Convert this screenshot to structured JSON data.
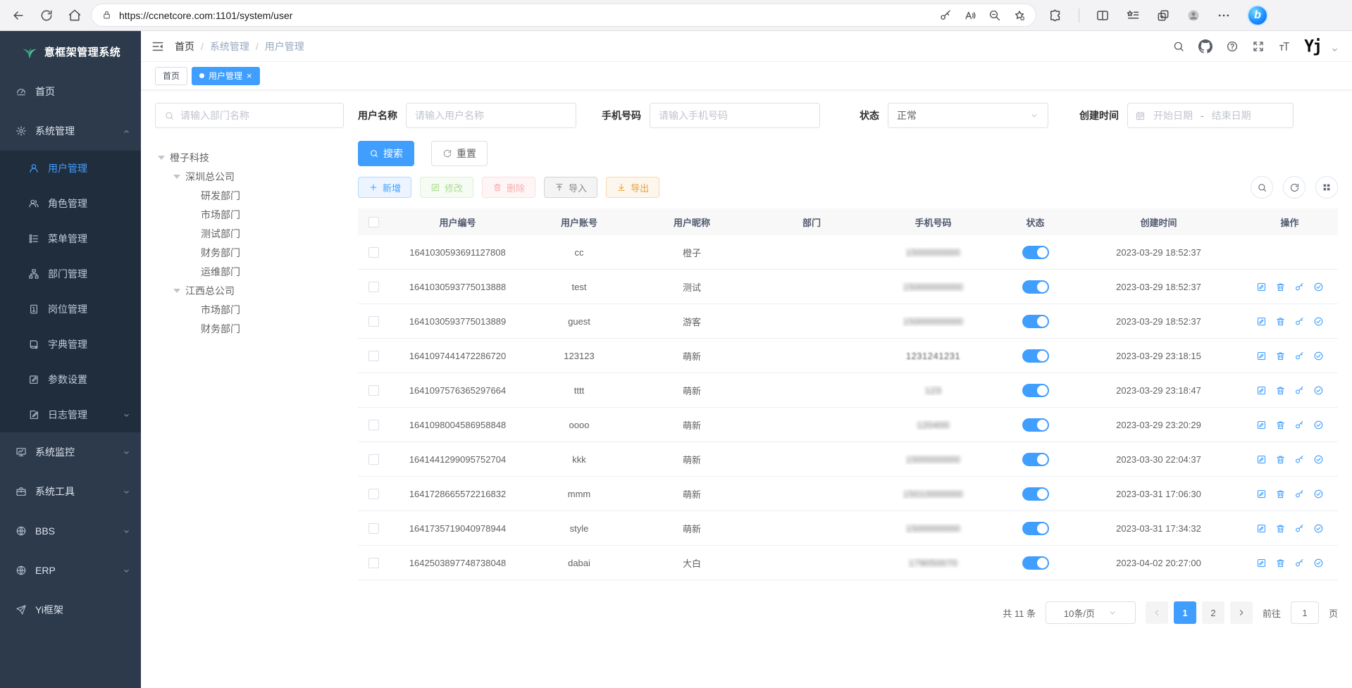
{
  "colors": {
    "accent": "#409eff",
    "sidebar_bg": "#2d3a4b",
    "sidebar_submenu_bg": "#202d3d",
    "success": "#67c23a",
    "danger": "#f56c6c",
    "warning": "#e6a23c",
    "info": "#909399",
    "toggle_on": "#409eff"
  },
  "browser": {
    "url": "https://ccnetcore.com:1101/system/user",
    "left_icons": [
      "back",
      "refresh",
      "home"
    ],
    "pill_icons_right": [
      "key",
      "read-aloud",
      "zoom-out",
      "favorite-add"
    ],
    "right_icons": [
      "extensions",
      "split-screen",
      "collections",
      "tab-actions",
      "profile",
      "more",
      "copilot"
    ]
  },
  "sidebar": {
    "title": "意框架管理系统",
    "items": [
      {
        "key": "home",
        "icon": "dashboard",
        "label": "首页"
      },
      {
        "key": "system",
        "icon": "gear",
        "label": "系统管理",
        "arrow": "up",
        "children": [
          {
            "key": "user",
            "icon": "user",
            "label": "用户管理",
            "active": true
          },
          {
            "key": "role",
            "icon": "users",
            "label": "角色管理"
          },
          {
            "key": "menu",
            "icon": "menu-tree",
            "label": "菜单管理"
          },
          {
            "key": "dept",
            "icon": "org",
            "label": "部门管理"
          },
          {
            "key": "post",
            "icon": "badge",
            "label": "岗位管理"
          },
          {
            "key": "dict",
            "icon": "dict-book",
            "label": "字典管理"
          },
          {
            "key": "config",
            "icon": "edit-square",
            "label": "参数设置"
          },
          {
            "key": "log",
            "icon": "log-doc",
            "label": "日志管理",
            "arrow": "down"
          }
        ]
      },
      {
        "key": "monitor",
        "icon": "monitor",
        "label": "系统监控",
        "arrow": "down"
      },
      {
        "key": "tool",
        "icon": "toolbox",
        "label": "系统工具",
        "arrow": "down"
      },
      {
        "key": "bbs",
        "icon": "globe",
        "label": "BBS",
        "arrow": "down"
      },
      {
        "key": "erp",
        "icon": "globe",
        "label": "ERP",
        "arrow": "down"
      },
      {
        "key": "yi",
        "icon": "paper-plane",
        "label": "Yi框架"
      }
    ]
  },
  "navbar": {
    "breadcrumb": [
      "首页",
      "系统管理",
      "用户管理"
    ],
    "right_icons": [
      "search",
      "github",
      "help",
      "fullscreen",
      "font-size"
    ],
    "user_logo": "Yj"
  },
  "tabs": [
    {
      "key": "home",
      "label": "首页",
      "active": false,
      "closable": false
    },
    {
      "key": "user-mgmt",
      "label": "用户管理",
      "active": true,
      "closable": true
    }
  ],
  "filters": {
    "dept_search_placeholder": "请输入部门名称",
    "username_label": "用户名称",
    "username_placeholder": "请输入用户名称",
    "phone_label": "手机号码",
    "phone_placeholder": "请输入手机号码",
    "status_label": "状态",
    "status_value": "正常",
    "created_label": "创建时间",
    "date_start_placeholder": "开始日期",
    "date_separator": "-",
    "date_end_placeholder": "结束日期",
    "search_button": "搜索",
    "reset_button": "重置"
  },
  "tree": [
    {
      "label": "橙子科技",
      "level": 0,
      "caret": true
    },
    {
      "label": "深圳总公司",
      "level": 1,
      "caret": true
    },
    {
      "label": "研发部门",
      "level": 2
    },
    {
      "label": "市场部门",
      "level": 2
    },
    {
      "label": "测试部门",
      "level": 2
    },
    {
      "label": "财务部门",
      "level": 2
    },
    {
      "label": "运维部门",
      "level": 2
    },
    {
      "label": "江西总公司",
      "level": 1,
      "caret": true
    },
    {
      "label": "市场部门",
      "level": 2
    },
    {
      "label": "财务部门",
      "level": 2
    }
  ],
  "toolbar": {
    "add": "新增",
    "edit": "修改",
    "delete": "删除",
    "import": "导入",
    "export": "导出"
  },
  "table": {
    "columns": [
      "用户编号",
      "用户账号",
      "用户昵称",
      "部门",
      "手机号码",
      "状态",
      "创建时间",
      "操作"
    ],
    "rows": [
      {
        "id": "1641030593691127808",
        "account": "cc",
        "nickname": "橙子",
        "dept": "",
        "phone": "1500000000",
        "masked": "heavy",
        "status": true,
        "created": "2023-03-29 18:52:37",
        "actions": false
      },
      {
        "id": "1641030593775013888",
        "account": "test",
        "nickname": "测试",
        "dept": "",
        "phone": "15000000000",
        "masked": "heavy",
        "status": true,
        "created": "2023-03-29 18:52:37",
        "actions": true
      },
      {
        "id": "1641030593775013889",
        "account": "guest",
        "nickname": "游客",
        "dept": "",
        "phone": "15000000000",
        "masked": "heavy",
        "status": true,
        "created": "2023-03-29 18:52:37",
        "actions": true
      },
      {
        "id": "1641097441472286720",
        "account": "123123",
        "nickname": "萌新",
        "dept": "",
        "phone": "1231241231",
        "masked": "light",
        "status": true,
        "created": "2023-03-29 23:18:15",
        "actions": true
      },
      {
        "id": "1641097576365297664",
        "account": "tttt",
        "nickname": "萌新",
        "dept": "",
        "phone": "123",
        "masked": "heavy",
        "status": true,
        "created": "2023-03-29 23:18:47",
        "actions": true
      },
      {
        "id": "1641098004586958848",
        "account": "oooo",
        "nickname": "萌新",
        "dept": "",
        "phone": "120400",
        "masked": "heavy",
        "status": true,
        "created": "2023-03-29 23:20:29",
        "actions": true
      },
      {
        "id": "1641441299095752704",
        "account": "kkk",
        "nickname": "萌新",
        "dept": "",
        "phone": "1500000000",
        "masked": "heavy",
        "status": true,
        "created": "2023-03-30 22:04:37",
        "actions": true
      },
      {
        "id": "1641728665572216832",
        "account": "mmm",
        "nickname": "萌新",
        "dept": "",
        "phone": "15010000000",
        "masked": "heavy",
        "status": true,
        "created": "2023-03-31 17:06:30",
        "actions": true
      },
      {
        "id": "1641735719040978944",
        "account": "style",
        "nickname": "萌新",
        "dept": "",
        "phone": "1500000000",
        "masked": "heavy",
        "status": true,
        "created": "2023-03-31 17:34:32",
        "actions": true
      },
      {
        "id": "1642503897748738048",
        "account": "dabai",
        "nickname": "大白",
        "dept": "",
        "phone": "179050070",
        "masked": "heavy",
        "status": true,
        "created": "2023-04-02 20:27:00",
        "actions": true
      }
    ]
  },
  "pagination": {
    "total": "共 11 条",
    "page_size": "10条/页",
    "pages": [
      "1",
      "2"
    ],
    "active_page": "1",
    "goto_label": "前往",
    "goto_value": "1",
    "goto_unit": "页"
  }
}
